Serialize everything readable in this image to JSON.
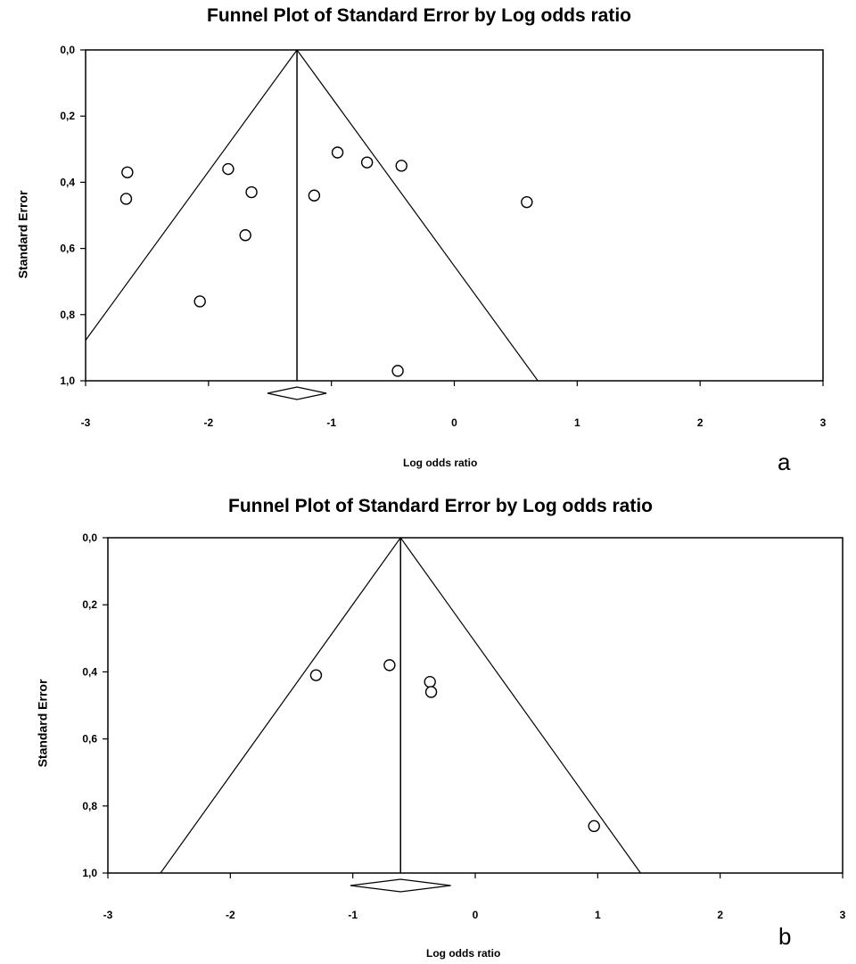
{
  "chart_data": [
    {
      "type": "scatter",
      "panel_label": "a",
      "title": "Funnel Plot of Standard Error by Log odds ratio",
      "xlabel": "Log odds ratio",
      "ylabel": "Standard Error",
      "xlim": [
        -3,
        3
      ],
      "ylim": [
        0,
        1.0
      ],
      "y_inverted": true,
      "x_ticks": [
        "-3",
        "-2",
        "-1",
        "0",
        "1",
        "2",
        "3"
      ],
      "y_ticks": [
        "0,0",
        "0,2",
        "0,4",
        "0,6",
        "0,8",
        "1,0"
      ],
      "pooled_estimate": -1.28,
      "funnel": true,
      "points": [
        {
          "x": -2.66,
          "y": 0.37
        },
        {
          "x": -2.67,
          "y": 0.45
        },
        {
          "x": -1.84,
          "y": 0.36
        },
        {
          "x": -1.65,
          "y": 0.43
        },
        {
          "x": -1.7,
          "y": 0.56
        },
        {
          "x": -2.07,
          "y": 0.76
        },
        {
          "x": -1.14,
          "y": 0.44
        },
        {
          "x": -0.95,
          "y": 0.31
        },
        {
          "x": -0.71,
          "y": 0.34
        },
        {
          "x": -0.43,
          "y": 0.35
        },
        {
          "x": 0.59,
          "y": 0.46
        },
        {
          "x": -0.46,
          "y": 0.97
        }
      ],
      "diamond": {
        "center": -1.28,
        "low": -1.52,
        "high": -1.04
      }
    },
    {
      "type": "scatter",
      "panel_label": "b",
      "title": "Funnel Plot of Standard Error by Log odds ratio",
      "xlabel": "Log odds ratio",
      "ylabel": "Standard Error",
      "xlim": [
        -3,
        3
      ],
      "ylim": [
        0,
        1.0
      ],
      "y_inverted": true,
      "x_ticks": [
        "-3",
        "-2",
        "-1",
        "0",
        "1",
        "2",
        "3"
      ],
      "y_ticks": [
        "0,0",
        "0,2",
        "0,4",
        "0,6",
        "0,8",
        "1,0"
      ],
      "pooled_estimate": -0.61,
      "funnel": true,
      "points": [
        {
          "x": -1.3,
          "y": 0.41
        },
        {
          "x": -0.7,
          "y": 0.38
        },
        {
          "x": -0.37,
          "y": 0.43
        },
        {
          "x": -0.36,
          "y": 0.46
        },
        {
          "x": 0.97,
          "y": 0.86
        }
      ],
      "diamond": {
        "center": -0.61,
        "low": -1.02,
        "high": -0.2
      }
    }
  ]
}
